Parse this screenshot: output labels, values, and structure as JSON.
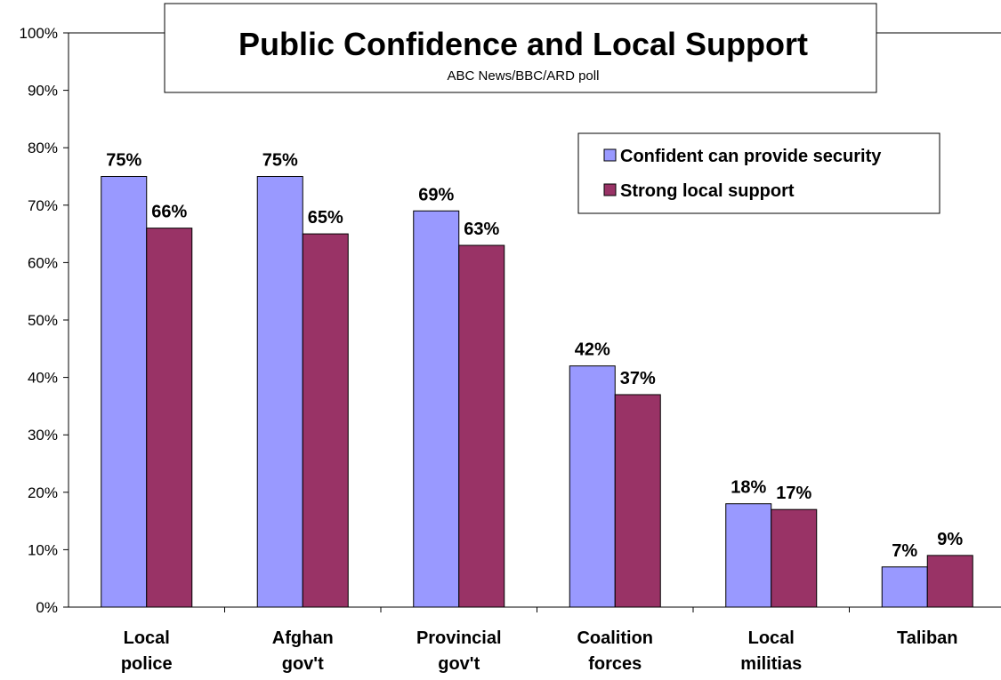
{
  "chart_data": {
    "type": "bar",
    "title": "Public Confidence and Local Support",
    "subtitle": "ABC News/BBC/ARD poll",
    "categories": [
      [
        "Local",
        "police"
      ],
      [
        "Afghan",
        "gov't"
      ],
      [
        "Provincial",
        "gov't"
      ],
      [
        "Coalition",
        "forces"
      ],
      [
        "Local",
        "militias"
      ],
      [
        "Taliban"
      ]
    ],
    "series": [
      {
        "name": "Confident can provide security",
        "color": "#9999FF",
        "values": [
          75,
          75,
          69,
          42,
          18,
          7
        ],
        "labels": [
          "75%",
          "75%",
          "69%",
          "42%",
          "18%",
          "7%"
        ]
      },
      {
        "name": "Strong local support",
        "color": "#993366",
        "values": [
          66,
          65,
          63,
          37,
          17,
          9
        ],
        "labels": [
          "66%",
          "65%",
          "63%",
          "37%",
          "17%",
          "9%"
        ]
      }
    ],
    "ylim": [
      0,
      100
    ],
    "yticks": [
      0,
      10,
      20,
      30,
      40,
      50,
      60,
      70,
      80,
      90,
      100
    ],
    "ytick_labels": [
      "0%",
      "10%",
      "20%",
      "30%",
      "40%",
      "50%",
      "60%",
      "70%",
      "80%",
      "90%",
      "100%"
    ],
    "grid": false,
    "legend_position": "top-right"
  }
}
